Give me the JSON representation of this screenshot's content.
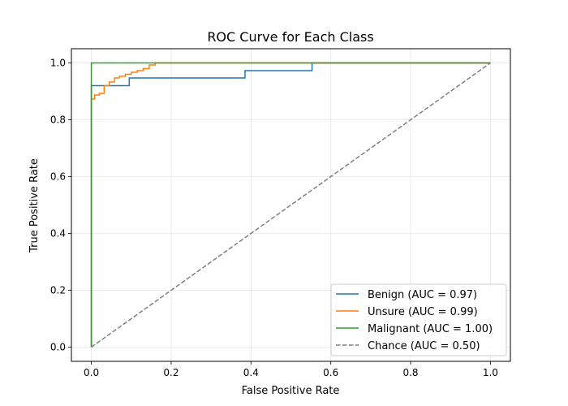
{
  "chart_data": {
    "type": "line",
    "title": "ROC Curve for Each Class",
    "xlabel": "False Positive Rate",
    "ylabel": "True Positive Rate",
    "xlim": [
      -0.05,
      1.05
    ],
    "ylim": [
      -0.05,
      1.05
    ],
    "xticks": [
      0.0,
      0.2,
      0.4,
      0.6,
      0.8,
      1.0
    ],
    "yticks": [
      0.0,
      0.2,
      0.4,
      0.6,
      0.8,
      1.0
    ],
    "xtick_labels": [
      "0.0",
      "0.2",
      "0.4",
      "0.6",
      "0.8",
      "1.0"
    ],
    "ytick_labels": [
      "0.0",
      "0.2",
      "0.4",
      "0.6",
      "0.8",
      "1.0"
    ],
    "grid": true,
    "legend_position": "lower-right",
    "series": [
      {
        "name": "Benign (AUC = 0.97)",
        "color": "#1f77b4",
        "dashed": false,
        "x": [
          0.0,
          0.0,
          0.0,
          0.095,
          0.095,
          0.385,
          0.385,
          0.553,
          0.553,
          1.0
        ],
        "y": [
          0.0,
          0.88,
          0.92,
          0.92,
          0.947,
          0.947,
          0.973,
          0.973,
          1.0,
          1.0
        ]
      },
      {
        "name": "Unsure (AUC = 0.99)",
        "color": "#ff7f0e",
        "dashed": false,
        "x": [
          0.0,
          0.0,
          0.008,
          0.008,
          0.02,
          0.02,
          0.032,
          0.032,
          0.045,
          0.045,
          0.058,
          0.058,
          0.07,
          0.07,
          0.085,
          0.085,
          0.1,
          0.1,
          0.115,
          0.115,
          0.13,
          0.13,
          0.145,
          0.145,
          0.16,
          0.16,
          1.0
        ],
        "y": [
          0.0,
          0.873,
          0.873,
          0.887,
          0.887,
          0.893,
          0.893,
          0.92,
          0.92,
          0.933,
          0.933,
          0.947,
          0.947,
          0.953,
          0.953,
          0.96,
          0.96,
          0.967,
          0.967,
          0.973,
          0.973,
          0.98,
          0.98,
          0.993,
          0.993,
          1.0,
          1.0
        ]
      },
      {
        "name": "Malignant (AUC = 1.00)",
        "color": "#2ca02c",
        "dashed": false,
        "x": [
          0.0,
          0.0,
          1.0
        ],
        "y": [
          0.0,
          1.0,
          1.0
        ]
      },
      {
        "name": "Chance (AUC = 0.50)",
        "color": "#7f7f7f",
        "dashed": true,
        "x": [
          0.0,
          1.0
        ],
        "y": [
          0.0,
          1.0
        ]
      }
    ]
  }
}
